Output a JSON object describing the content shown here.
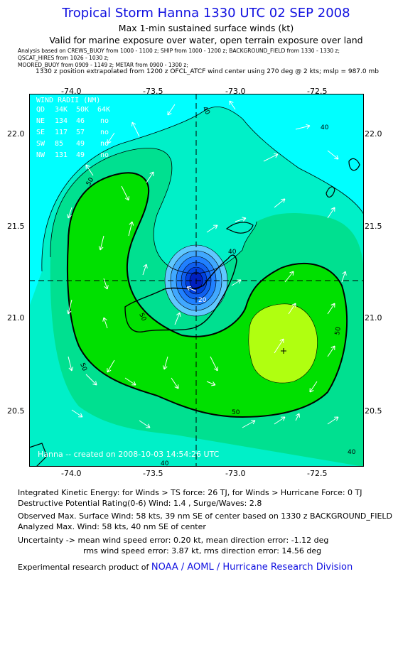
{
  "header": {
    "title": "Tropical Storm Hanna 1330 UTC 02 SEP 2008",
    "subtitle": "Max 1-min sustained surface winds (kt)",
    "validity": "Valid for marine exposure over water, open terrain exposure over land",
    "analysis_line1": "Analysis based on  CREWS_BUOY from 1000 - 1100 z;  SHIP from 1000 - 1200 z;  BACKGROUND_FIELD from 1330 - 1330 z;",
    "analysis_line2": "QSCAT_HIRES from 1026 - 1030 z;",
    "analysis_line3": "MOORED_BUOY from 0909 - 1149 z;  METAR from 0900 - 1300 z;",
    "position_note": "1330 z position extrapolated from 1200 z OFCL_ATCF wind center using 270 deg @ 2 kts; mslp = 987.0 mb"
  },
  "map": {
    "x_ticks": [
      "-74.0",
      "-73.5",
      "-73.0",
      "-72.5"
    ],
    "y_ticks": [
      "22.0",
      "21.5",
      "21.0",
      "20.5"
    ],
    "wind_radii": {
      "title": "WIND RADII (NM)",
      "header": [
        "QD",
        "34K",
        "50K",
        "64K"
      ],
      "rows": [
        [
          "NE",
          "134",
          "46",
          "no"
        ],
        [
          "SE",
          "117",
          "57",
          "no"
        ],
        [
          "SW",
          "85",
          "49",
          "no"
        ],
        [
          "NW",
          "131",
          "49",
          "no"
        ]
      ]
    },
    "contour_labels": [
      "40",
      "40",
      "40",
      "50",
      "50",
      "50",
      "50",
      "50",
      "40",
      "20",
      "40"
    ],
    "credit": "Hanna -- created on 2008-10-03 14:54:26 UTC",
    "colors": {
      "bg": "#00ffff",
      "band30": "#00f0c8",
      "band40": "#00e090",
      "band50": "#00e000",
      "band60": "#b0ff10",
      "core": [
        "#60c8ff",
        "#40a8ff",
        "#2080ff",
        "#1060f0",
        "#0040e0",
        "#0020c0"
      ]
    }
  },
  "info": {
    "ike": "Integrated Kinetic Energy:  for Winds > TS force: 26 TJ,  for Winds > Hurricane Force: 0 TJ",
    "dpr": "Destructive Potential Rating(0-6)   Wind: 1.4 , Surge/Waves: 2.8",
    "observed": "Observed Max. Surface Wind: 58 kts, 39 nm SE of center based on 1330 z BACKGROUND_FIELD",
    "analyzed": "Analyzed Max. Wind: 58 kts, 40 nm SE of center",
    "uncertainty1": "Uncertainty -> mean wind speed error: 0.20 kt,   mean direction error:  -1.12 deg",
    "uncertainty2": "rms wind speed error: 3.87 kt,   rms direction error: 14.56 deg",
    "product": "Experimental research product of ",
    "org": "NOAA / AOML / Hurricane Research Division"
  }
}
